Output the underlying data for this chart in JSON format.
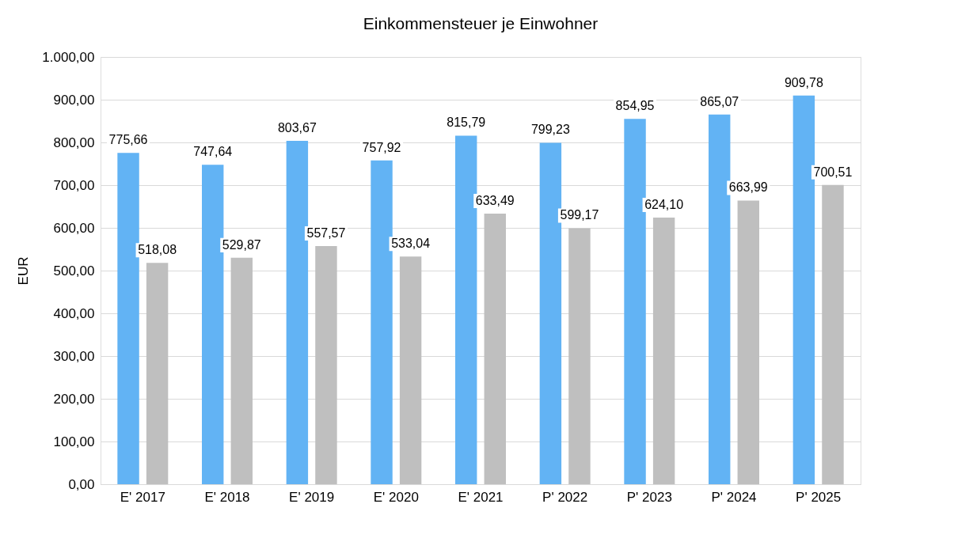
{
  "chart_data": {
    "type": "bar",
    "title": "Einkommensteuer je Einwohner",
    "ylabel": "EUR",
    "categories": [
      "E' 2017",
      "E' 2018",
      "E' 2019",
      "E' 2020",
      "E' 2021",
      "P' 2022",
      "P' 2023",
      "P' 2024",
      "P' 2025"
    ],
    "series": [
      {
        "color": "#62b3f4",
        "values": [
          775.66,
          747.64,
          803.67,
          757.92,
          815.79,
          799.23,
          854.95,
          865.07,
          909.78
        ],
        "value_labels": [
          "775,66",
          "747,64",
          "803,67",
          "757,92",
          "815,79",
          "799,23",
          "854,95",
          "865,07",
          "909,78"
        ]
      },
      {
        "color": "#bfbfbf",
        "values": [
          518.08,
          529.87,
          557.57,
          533.04,
          633.49,
          599.17,
          624.1,
          663.99,
          700.51
        ],
        "value_labels": [
          "518,08",
          "529,87",
          "557,57",
          "533,04",
          "633,49",
          "599,17",
          "624,10",
          "663,99",
          "700,51"
        ]
      }
    ],
    "ylim": [
      0,
      1000
    ],
    "yticks": [
      {
        "value": 0,
        "label": "0,00"
      },
      {
        "value": 100,
        "label": "100,00"
      },
      {
        "value": 200,
        "label": "200,00"
      },
      {
        "value": 300,
        "label": "300,00"
      },
      {
        "value": 400,
        "label": "400,00"
      },
      {
        "value": 500,
        "label": "500,00"
      },
      {
        "value": 600,
        "label": "600,00"
      },
      {
        "value": 700,
        "label": "700,00"
      },
      {
        "value": 800,
        "label": "800,00"
      },
      {
        "value": 900,
        "label": "900,00"
      },
      {
        "value": 1000,
        "label": "1.000,00"
      }
    ],
    "grid": "y"
  }
}
